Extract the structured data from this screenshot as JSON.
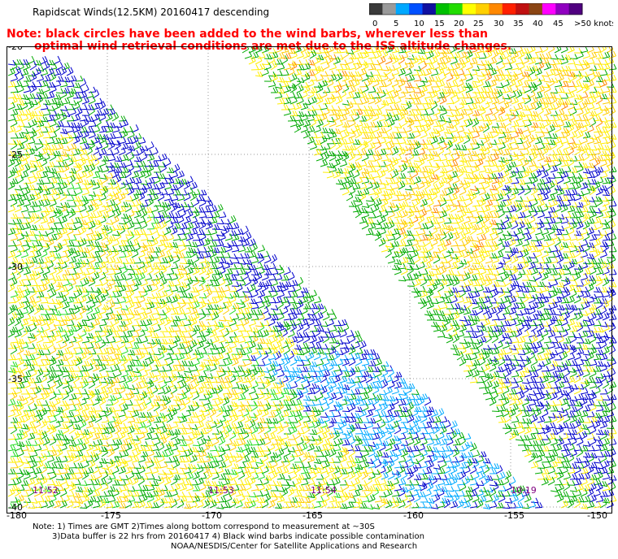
{
  "header": {
    "title": "Rapidscat Winds(12.5KM) 20160417 descending",
    "note_line1": "Note: black circles have been added to the wind barbs, wherever less than",
    "note_line2": "optimal wind retrieval conditions are met due to the ISS altitude changes."
  },
  "colorbar": {
    "labels": [
      "0",
      "5",
      "10",
      "15",
      "20",
      "25",
      "30",
      "35",
      "40",
      "45",
      ">50 knots"
    ],
    "colors": [
      "#3a3a3a",
      "#9a9a9a",
      "#00a8ff",
      "#0050ff",
      "#1010a0",
      "#00c000",
      "#22dd00",
      "#ffff00",
      "#ffd000",
      "#ff8800",
      "#ff2000",
      "#c01010",
      "#8b4513",
      "#ff00ff",
      "#9000c0",
      "#500080"
    ]
  },
  "map": {
    "lat_labels": [
      "-20",
      "-25",
      "-30",
      "-35",
      "-40"
    ],
    "lon_labels": [
      "-180",
      "-175",
      "-170",
      "-165",
      "-160",
      "-155",
      "-150"
    ],
    "time_labels": [
      "11:52",
      "11:53",
      "11:54",
      "10:19"
    ],
    "barb_colors": {
      "blue": "#0000cc",
      "cyan": "#00aaff",
      "green": "#00aa00",
      "lightgreen": "#22dd22",
      "yellow": "#ffee00",
      "gold": "#ffcc00",
      "orange": "#ff8800",
      "black": "#000000"
    }
  },
  "footer": {
    "line1": "Note: 1) Times are GMT 2)Times along bottom correspond to measurement at ~30S",
    "line2": "3)Data buffer is 22 hrs from 20160417 4) Black wind barbs indicate possible contamination",
    "line3": "NOAA/NESDIS/Center for Satellite Applications and Research"
  }
}
